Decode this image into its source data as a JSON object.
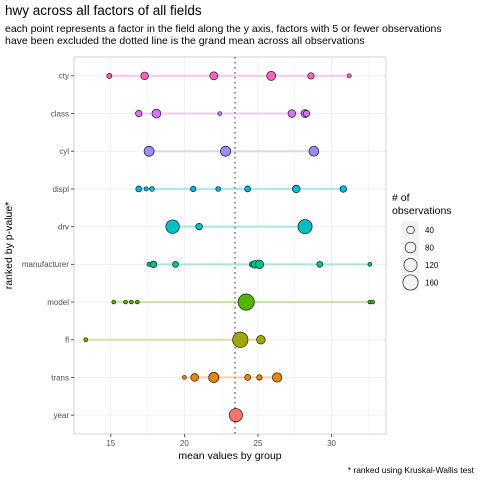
{
  "chart_data": {
    "type": "scatter",
    "title": "hwy across all factors of all fields",
    "subtitle": [
      "each point represents a factor in the field along the y axis, factors with 5 or fewer observations",
      "have been excluded the dotted line is the grand mean across all observations"
    ],
    "xlabel": "mean values by group",
    "ylabel": "ranked by p-value*",
    "caption": "* ranked using Kruskal-Wallis test",
    "xlim": [
      12.5,
      33.7
    ],
    "x_ticks": [
      15,
      20,
      25,
      30
    ],
    "grand_mean": 23.44,
    "grid": true,
    "legend": {
      "title_lines": [
        "# of",
        " observations"
      ],
      "position": "right",
      "entries": [
        {
          "label": "40",
          "size": 40
        },
        {
          "label": "80",
          "size": 80
        },
        {
          "label": "120",
          "size": 120
        },
        {
          "label": "160",
          "size": 160
        }
      ]
    },
    "fields": [
      {
        "name": "cty",
        "color": "#FF61C3",
        "points": [
          {
            "x": 14.9,
            "n": 9
          },
          {
            "x": 17.3,
            "n": 20
          },
          {
            "x": 22.0,
            "n": 22
          },
          {
            "x": 25.9,
            "n": 28
          },
          {
            "x": 28.6,
            "n": 14
          },
          {
            "x": 31.2,
            "n": 6
          }
        ]
      },
      {
        "name": "class",
        "color": "#DB72FB",
        "points": [
          {
            "x": 16.9,
            "n": 14
          },
          {
            "x": 18.1,
            "n": 27
          },
          {
            "x": 22.4,
            "n": 5
          },
          {
            "x": 27.3,
            "n": 20
          },
          {
            "x": 28.2,
            "n": 22
          },
          {
            "x": 28.3,
            "n": 14
          }
        ]
      },
      {
        "name": "cyl",
        "color": "#9590FF",
        "points": [
          {
            "x": 17.6,
            "n": 34
          },
          {
            "x": 22.8,
            "n": 35
          },
          {
            "x": 28.8,
            "n": 33
          }
        ]
      },
      {
        "name": "displ",
        "color": "#00B9E3",
        "points": [
          {
            "x": 16.9,
            "n": 12
          },
          {
            "x": 17.4,
            "n": 6
          },
          {
            "x": 17.8,
            "n": 8
          },
          {
            "x": 20.6,
            "n": 10
          },
          {
            "x": 22.3,
            "n": 8
          },
          {
            "x": 24.3,
            "n": 12
          },
          {
            "x": 27.6,
            "n": 20
          },
          {
            "x": 30.8,
            "n": 15
          }
        ]
      },
      {
        "name": "drv",
        "color": "#00BFC4",
        "points": [
          {
            "x": 19.2,
            "n": 62
          },
          {
            "x": 21.0,
            "n": 15
          },
          {
            "x": 28.2,
            "n": 68
          }
        ]
      },
      {
        "name": "manufacturer",
        "color": "#00C08B",
        "points": [
          {
            "x": 17.6,
            "n": 6
          },
          {
            "x": 17.9,
            "n": 15
          },
          {
            "x": 19.4,
            "n": 12
          },
          {
            "x": 24.6,
            "n": 10
          },
          {
            "x": 24.8,
            "n": 20
          },
          {
            "x": 25.1,
            "n": 25
          },
          {
            "x": 29.2,
            "n": 12
          },
          {
            "x": 32.6,
            "n": 5
          }
        ]
      },
      {
        "name": "model",
        "color": "#53B400",
        "points": [
          {
            "x": 15.2,
            "n": 5
          },
          {
            "x": 16.0,
            "n": 5
          },
          {
            "x": 16.4,
            "n": 5
          },
          {
            "x": 16.8,
            "n": 5
          },
          {
            "x": 24.2,
            "n": 90
          },
          {
            "x": 32.6,
            "n": 5
          },
          {
            "x": 32.8,
            "n": 5
          }
        ]
      },
      {
        "name": "fl",
        "color": "#A3A500",
        "points": [
          {
            "x": 13.3,
            "n": 5
          },
          {
            "x": 23.8,
            "n": 80
          },
          {
            "x": 25.2,
            "n": 25
          }
        ]
      },
      {
        "name": "trans",
        "color": "#E58700",
        "points": [
          {
            "x": 20.0,
            "n": 5
          },
          {
            "x": 20.7,
            "n": 20
          },
          {
            "x": 22.0,
            "n": 35
          },
          {
            "x": 24.3,
            "n": 12
          },
          {
            "x": 25.1,
            "n": 10
          },
          {
            "x": 26.3,
            "n": 30
          }
        ]
      },
      {
        "name": "year",
        "color": "#F8766D",
        "points": [
          {
            "x": 23.5,
            "n": 60
          }
        ]
      }
    ]
  }
}
